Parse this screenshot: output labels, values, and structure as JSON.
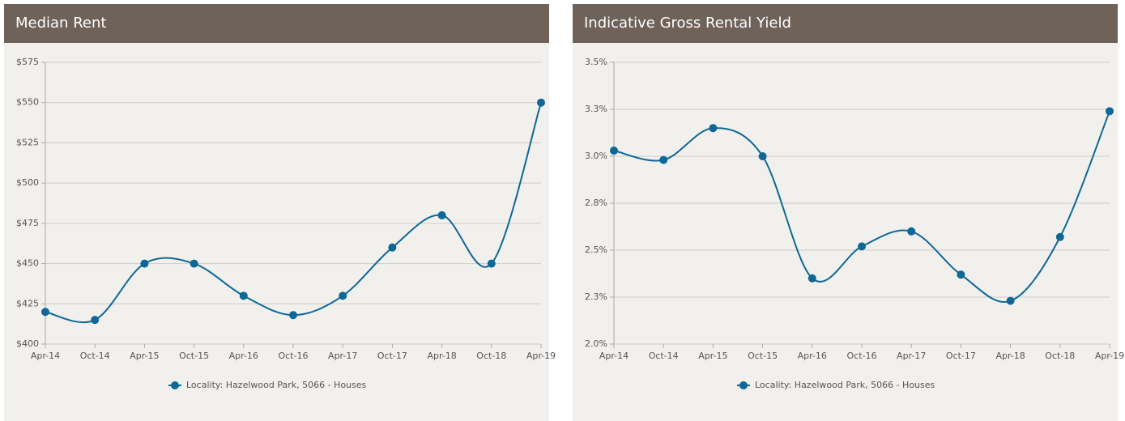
{
  "chart_data": [
    {
      "type": "line",
      "title": "Median Rent",
      "categories": [
        "Apr-14",
        "Oct-14",
        "Apr-15",
        "Oct-15",
        "Apr-16",
        "Oct-16",
        "Apr-17",
        "Oct-17",
        "Apr-18",
        "Oct-18",
        "Apr-19"
      ],
      "series": [
        {
          "name": "Locality: Hazelwood Park, 5066 - Houses",
          "color": "#0e6796",
          "values": [
            420,
            415,
            450,
            450,
            430,
            418,
            430,
            460,
            480,
            450,
            550
          ]
        }
      ],
      "ylim": [
        400,
        575
      ],
      "yticks": [
        {
          "value": 400,
          "label": "$400"
        },
        {
          "value": 425,
          "label": "$425"
        },
        {
          "value": 450,
          "label": "$450"
        },
        {
          "value": 475,
          "label": "$475"
        },
        {
          "value": 500,
          "label": "$500"
        },
        {
          "value": 525,
          "label": "$525"
        },
        {
          "value": 550,
          "label": "$550"
        },
        {
          "value": 575,
          "label": "$575"
        }
      ],
      "grid": true
    },
    {
      "type": "line",
      "title": "Indicative Gross Rental Yield",
      "categories": [
        "Apr-14",
        "Oct-14",
        "Apr-15",
        "Oct-15",
        "Apr-16",
        "Oct-16",
        "Apr-17",
        "Oct-17",
        "Apr-18",
        "Oct-18",
        "Apr-19"
      ],
      "series": [
        {
          "name": "Locality: Hazelwood Park, 5066 - Houses",
          "color": "#0e6796",
          "values": [
            3.03,
            2.98,
            3.15,
            3.0,
            2.35,
            2.52,
            2.6,
            2.37,
            2.23,
            2.57,
            3.24
          ]
        }
      ],
      "ylim": [
        2.0,
        3.5
      ],
      "yticks": [
        {
          "value": 2.0,
          "label": "2.0%"
        },
        {
          "value": 2.25,
          "label": "2.3%"
        },
        {
          "value": 2.5,
          "label": "2.5%"
        },
        {
          "value": 2.75,
          "label": "2.8%"
        },
        {
          "value": 3.0,
          "label": "3.0%"
        },
        {
          "value": 3.25,
          "label": "3.3%"
        },
        {
          "value": 3.5,
          "label": "3.5%"
        }
      ],
      "grid": true
    }
  ]
}
